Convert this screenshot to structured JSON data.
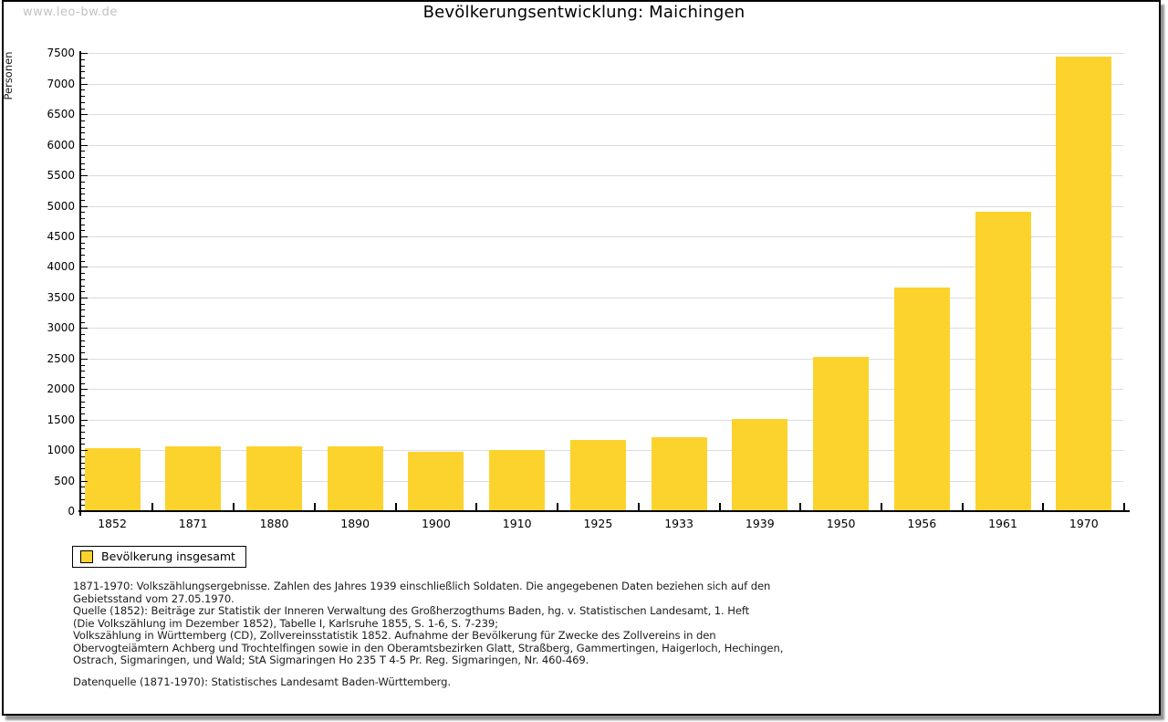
{
  "watermark": "www.leo-bw.de",
  "legend": {
    "label": "Bevölkerung insgesamt"
  },
  "colors": {
    "bar": "#fcd32d",
    "grid": "#dcdcdc",
    "axis": "#000000",
    "watermark": "#c2c2c2"
  },
  "chart_data": {
    "type": "bar",
    "title": "Bevölkerungsentwicklung: Maichingen",
    "xlabel": "",
    "ylabel": "Personen",
    "categories": [
      "1852",
      "1871",
      "1880",
      "1890",
      "1900",
      "1910",
      "1925",
      "1933",
      "1939",
      "1950",
      "1956",
      "1961",
      "1970"
    ],
    "series": [
      {
        "name": "Bevölkerung insgesamt",
        "values": [
          1020,
          1050,
          1050,
          1050,
          960,
          990,
          1150,
          1190,
          1500,
          2510,
          3650,
          4890,
          7430
        ]
      }
    ],
    "ylim": [
      0,
      7500
    ],
    "ytick_step": 500,
    "ytick_minor_step": 100,
    "grid": true,
    "legend_position": "bottom-left"
  },
  "footnotes": {
    "lines": [
      "1871-1970: Volkszählungsergebnisse. Zahlen des Jahres 1939 einschließlich Soldaten. Die angegebenen Daten beziehen sich auf den",
      "Gebietsstand vom 27.05.1970.",
      "Quelle (1852): Beiträge zur Statistik der Inneren Verwaltung des Großherzogthums Baden, hg. v. Statistischen Landesamt, 1. Heft",
      "(Die Volkszählung im Dezember 1852), Tabelle I, Karlsruhe 1855, S. 1-6, S. 7-239;",
      "Volkszählung in Württemberg (CD), Zollvereinsstatistik 1852. Aufnahme der Bevölkerung für Zwecke des Zollvereins in den",
      "Obervogteiämtern Achberg und Trochtelfingen sowie in den Oberamtsbezirken Glatt, Straßberg, Gammertingen, Haigerloch, Hechingen,",
      "Ostrach, Sigmaringen, und Wald; StA Sigmaringen Ho 235 T 4-5 Pr. Reg. Sigmaringen, Nr. 460-469."
    ],
    "datasource": "Datenquelle (1871-1970): Statistisches Landesamt Baden-Württemberg."
  }
}
